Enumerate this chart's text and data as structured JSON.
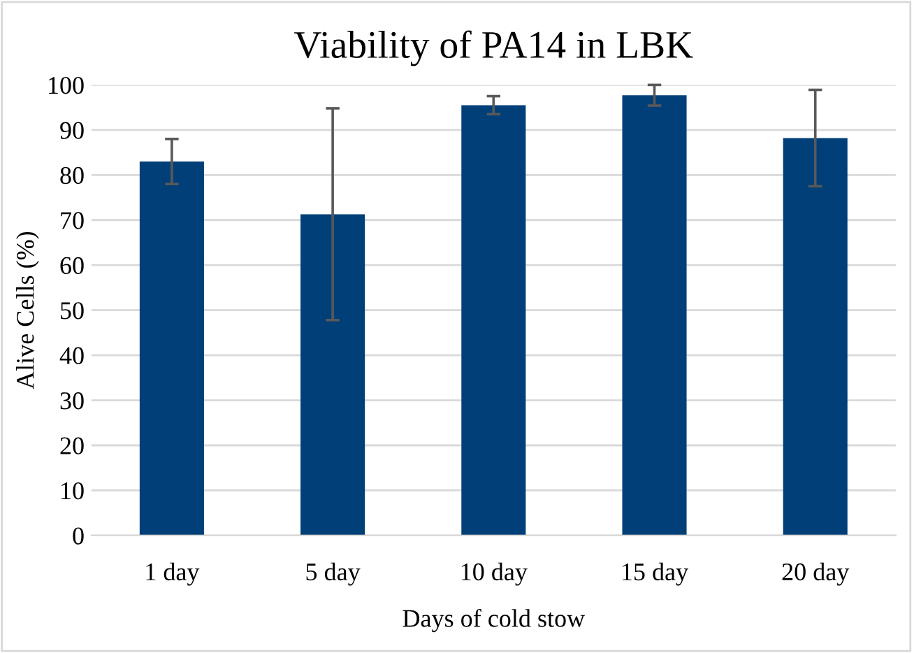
{
  "chart_data": {
    "type": "bar",
    "title": "Viability of PA14 in LBK",
    "xlabel": "Days of cold stow",
    "ylabel": "Alive Cells (%)",
    "categories": [
      "1 day",
      "5 day",
      "10 day",
      "15 day",
      "20 day"
    ],
    "values": [
      83,
      71.3,
      95.5,
      97.7,
      88.2
    ],
    "errors": [
      5,
      23.5,
      2,
      2.3,
      10.7
    ],
    "color": "#003f78",
    "ylim": [
      0,
      100
    ],
    "yticks": [
      0,
      10,
      20,
      30,
      40,
      50,
      60,
      70,
      80,
      90,
      100
    ],
    "grid": "y"
  }
}
